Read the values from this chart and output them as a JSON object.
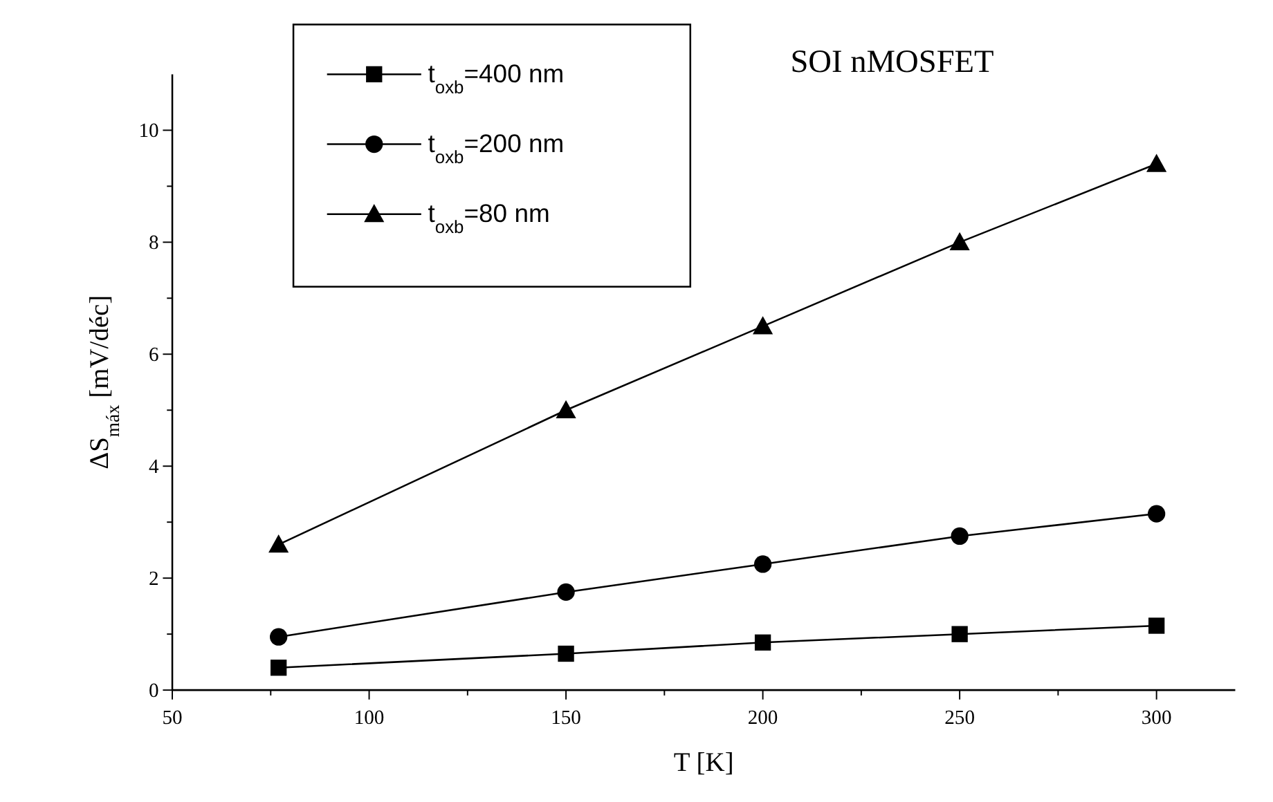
{
  "chart_data": {
    "type": "line",
    "title": "SOI nMOSFET",
    "xlabel": "T [K]",
    "ylabel": "ΔS$_{máx}$ [mV/déc]",
    "x": [
      77,
      150,
      200,
      250,
      300
    ],
    "xlim": [
      50,
      320
    ],
    "xticks": [
      50,
      100,
      150,
      200,
      250,
      300
    ],
    "ylim": [
      0,
      11
    ],
    "yticks": [
      0,
      2,
      4,
      6,
      8,
      10
    ],
    "grid": false,
    "legend": "top left",
    "line_style": "solid",
    "series": [
      {
        "name": "t$_{oxb}$=400 nm",
        "color": "#000000",
        "marker": "square",
        "values": [
          0.4,
          0.65,
          0.85,
          1.0,
          1.15
        ]
      },
      {
        "name": "t$_{oxb}$=200 nm",
        "color": "#000000",
        "marker": "circle",
        "values": [
          0.95,
          1.75,
          2.25,
          2.75,
          3.15
        ]
      },
      {
        "name": "t$_{oxb}$=80 nm",
        "color": "#000000",
        "marker": "triangle",
        "values": [
          2.6,
          5.0,
          6.5,
          8.0,
          9.4
        ]
      }
    ]
  }
}
